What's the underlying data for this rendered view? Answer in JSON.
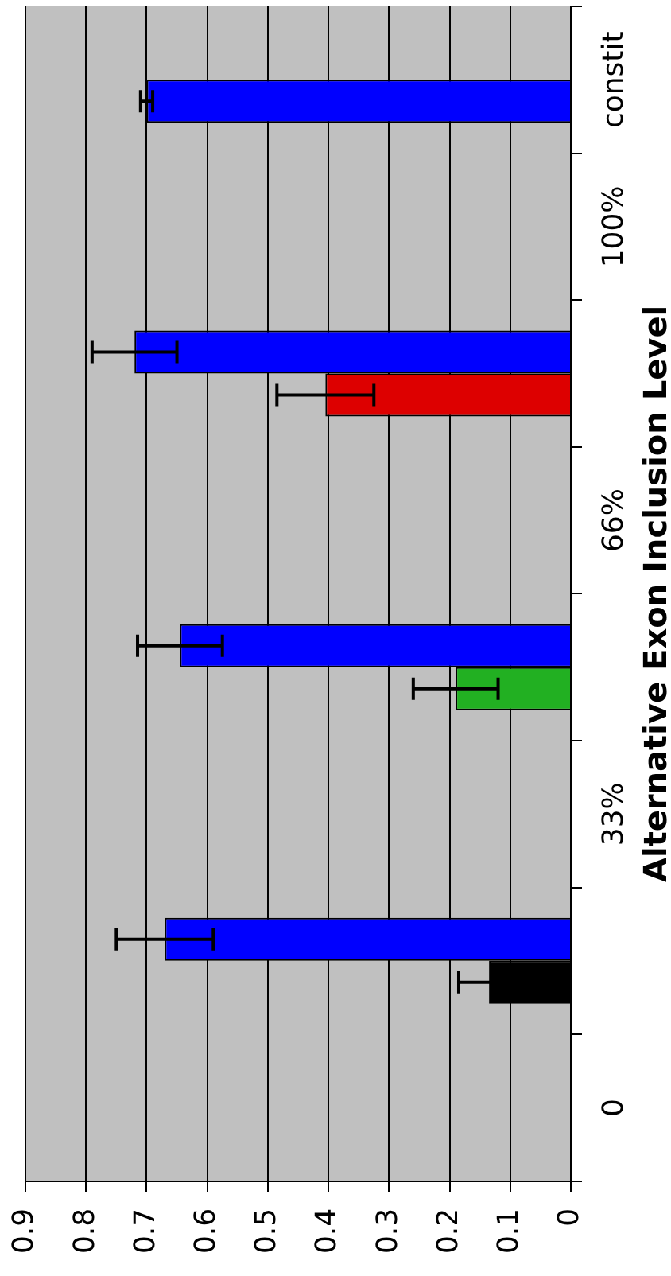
{
  "chart_data": {
    "type": "bar",
    "orientation": "horizontal",
    "ylabel": "Alternative Exon Inclusion Level",
    "categories": [
      "constit",
      "100%",
      null,
      "66%",
      null,
      "33%",
      null,
      "0"
    ],
    "series": [
      {
        "color": "#0000ff",
        "values": [
          null,
          null,
          0.72,
          null,
          0.645,
          null,
          0.67,
          null
        ],
        "errors": [
          null,
          null,
          0.07,
          null,
          0.07,
          null,
          0.08,
          null
        ]
      },
      {
        "colors": [
          "#0000ff",
          null,
          "#dd0000",
          null,
          "#22b022",
          null,
          "#000000",
          null
        ],
        "values": [
          0.7,
          null,
          0.405,
          null,
          0.19,
          null,
          0.135,
          null
        ],
        "errors": [
          0.01,
          null,
          0.08,
          null,
          0.07,
          null,
          0.05,
          null
        ]
      }
    ],
    "xlim": [
      0.9,
      0
    ],
    "xticks": [
      0.9,
      0.8,
      0.7,
      0.6,
      0.5,
      0.4,
      0.3,
      0.2,
      0.1,
      0
    ],
    "grid": "x",
    "legend": false
  }
}
